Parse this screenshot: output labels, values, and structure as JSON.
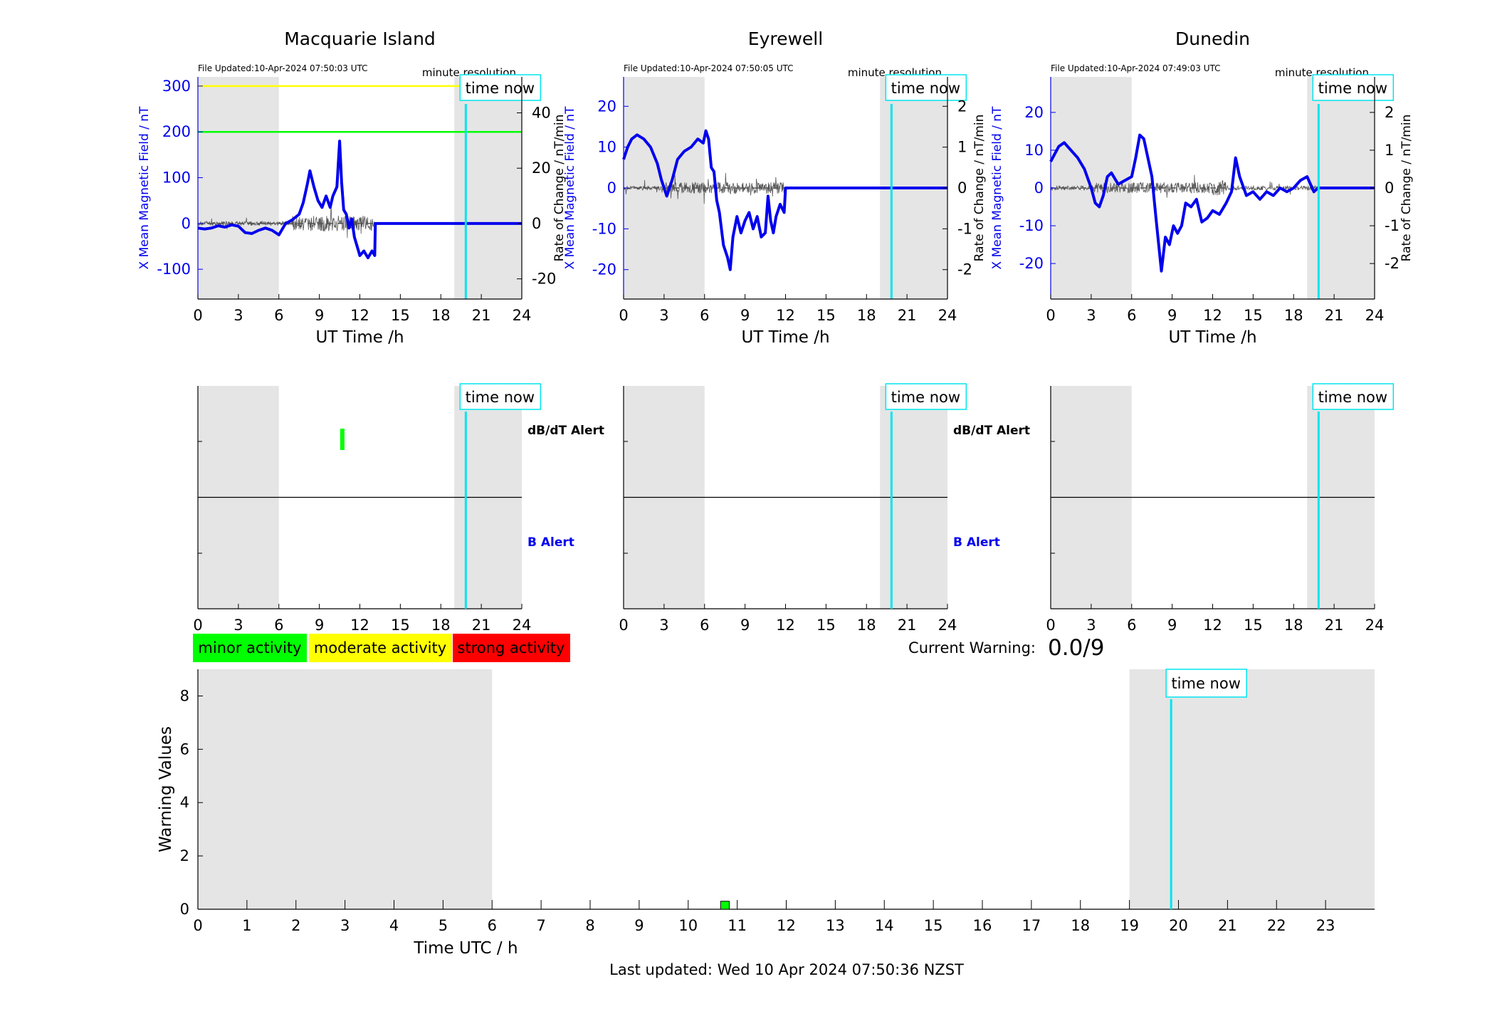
{
  "stations": [
    {
      "name": "Macquarie Island",
      "file_updated": "File Updated:10-Apr-2024 07:50:03 UTC",
      "resolution_label": "minute resolution",
      "left_axis_label": "X Mean Magnetic Field / nT",
      "right_axis_label": "Rate of Change / nT/min",
      "show_right_axis_label": false,
      "xlabel": "UT Time /h",
      "ylim": [
        -165,
        320
      ],
      "yticks": [
        -100,
        0,
        100,
        200,
        300
      ],
      "right_ylim": [
        -27.3,
        53
      ],
      "right_yticks": [
        -20,
        0,
        20,
        40
      ],
      "threshold_lines": [
        {
          "value": 300,
          "color": "#ffff00"
        },
        {
          "value": 200,
          "color": "#00ff00"
        }
      ],
      "dbdt_label": "dB/dT Alert",
      "b_label": "B Alert",
      "show_alert_labels": true
    },
    {
      "name": "Eyrewell",
      "file_updated": "File Updated:10-Apr-2024 07:50:05 UTC",
      "resolution_label": "minute resolution",
      "left_axis_label": "X Mean Magnetic Field / nT",
      "right_axis_label": "Rate of Change / nT/min",
      "show_right_axis_label": true,
      "xlabel": "UT Time /h",
      "ylim": [
        -27.2,
        27.2
      ],
      "yticks": [
        -20,
        -10,
        0,
        10,
        20
      ],
      "right_ylim": [
        -2.72,
        2.72
      ],
      "right_yticks": [
        -2,
        -1,
        0,
        1,
        2
      ],
      "threshold_lines": [],
      "dbdt_label": "dB/dT Alert",
      "b_label": "B Alert",
      "show_alert_labels": true
    },
    {
      "name": "Dunedin",
      "file_updated": "File Updated:10-Apr-2024 07:49:03 UTC",
      "resolution_label": "minute resolution",
      "left_axis_label": "X Mean Magnetic Field / nT",
      "right_axis_label": "Rate of Change / nT/min",
      "show_right_axis_label": true,
      "xlabel": "UT Time /h",
      "ylim": [
        -29.4,
        29.4
      ],
      "yticks": [
        -20,
        -10,
        0,
        10,
        20
      ],
      "right_ylim": [
        -2.94,
        2.94
      ],
      "right_yticks": [
        -2,
        -1,
        0,
        1,
        2
      ],
      "threshold_lines": [],
      "dbdt_label": "",
      "b_label": "",
      "show_alert_labels": false
    }
  ],
  "time_now_label": "time now",
  "time_now_hour": 19.85,
  "time_xticks": [
    0,
    3,
    6,
    9,
    12,
    15,
    18,
    21,
    24
  ],
  "shaded_ranges": [
    [
      0,
      6
    ],
    [
      19,
      24
    ]
  ],
  "colors": {
    "field_line": "#0000ee",
    "rate_line": "#555555",
    "time_now": "#00e5ee",
    "shade": "#e5e5e5",
    "minor": "#00ff00",
    "moderate": "#ffff00",
    "strong": "#ff0000"
  },
  "legend": {
    "minor": "minor activity",
    "moderate": "moderate activity",
    "strong": "strong activity"
  },
  "current_warning_label": "Current Warning:",
  "current_warning_value": "0.0/9",
  "last_updated": "Last updated: Wed 10 Apr 2024 07:50:36 NZST",
  "chart_data": [
    {
      "type": "line",
      "title": "Macquarie Island",
      "xlabel": "UT Time /h",
      "ylabel": "X Mean Magnetic Field / nT",
      "xlim": [
        0,
        24
      ],
      "ylim": [
        -165,
        320
      ],
      "series": [
        {
          "x": [
            0,
            0.5,
            1,
            1.5,
            2,
            2.5,
            3,
            3.5,
            4,
            4.5,
            5,
            5.5,
            6,
            6.5,
            7,
            7.5,
            7.8,
            8.1,
            8.3,
            8.6,
            8.9,
            9.2,
            9.5,
            9.8,
            10,
            10.3,
            10.5,
            10.65,
            10.8,
            11,
            11.2,
            11.4,
            11.6,
            11.8,
            12,
            12.3,
            12.6,
            12.9,
            13.1,
            13.15,
            14,
            16,
            18,
            20,
            22,
            24
          ],
          "y": [
            -10,
            -12,
            -10,
            -5,
            -8,
            -3,
            -6,
            -20,
            -22,
            -15,
            -10,
            -15,
            -25,
            0,
            8,
            20,
            45,
            85,
            115,
            80,
            50,
            35,
            60,
            35,
            60,
            80,
            180,
            90,
            30,
            20,
            -10,
            10,
            -30,
            -50,
            -70,
            -60,
            -75,
            -60,
            -70,
            0,
            0,
            0,
            0,
            0,
            0,
            0
          ]
        }
      ]
    },
    {
      "type": "line",
      "title": "Eyrewell",
      "xlabel": "UT Time /h",
      "ylabel": "X Mean Magnetic Field / nT",
      "xlim": [
        0,
        24
      ],
      "ylim": [
        -27.2,
        27.2
      ],
      "series": [
        {
          "x": [
            0,
            0.3,
            0.6,
            1,
            1.5,
            2,
            2.5,
            2.8,
            3.2,
            3.6,
            4,
            4.5,
            5,
            5.5,
            5.9,
            6.1,
            6.3,
            6.5,
            6.7,
            6.9,
            7.1,
            7.4,
            7.7,
            7.9,
            8.1,
            8.4,
            8.7,
            9,
            9.3,
            9.6,
            9.9,
            10.2,
            10.5,
            10.7,
            10.9,
            11.1,
            11.3,
            11.6,
            11.9,
            12,
            14,
            16,
            18,
            20,
            22,
            24
          ],
          "y": [
            7,
            10,
            12,
            13,
            12,
            10,
            6,
            2,
            -2,
            2,
            7,
            9,
            10,
            12,
            11,
            14,
            12,
            5,
            4,
            -3,
            -6,
            -14,
            -17,
            -20,
            -12,
            -7,
            -11,
            -8,
            -6,
            -10,
            -7,
            -12,
            -11,
            -2,
            -8,
            -11,
            -7,
            -4,
            -6,
            0,
            0,
            0,
            0,
            0,
            0,
            0
          ]
        }
      ]
    },
    {
      "type": "line",
      "title": "Dunedin",
      "xlabel": "UT Time /h",
      "ylabel": "X Mean Magnetic Field / nT",
      "xlim": [
        0,
        24
      ],
      "ylim": [
        -29.4,
        29.4
      ],
      "series": [
        {
          "x": [
            0,
            0.3,
            0.6,
            1,
            1.5,
            2,
            2.5,
            3,
            3.3,
            3.6,
            3.9,
            4.2,
            4.5,
            5,
            5.5,
            6,
            6.3,
            6.6,
            6.9,
            7.2,
            7.5,
            7.8,
            8,
            8.2,
            8.5,
            8.8,
            9.1,
            9.4,
            9.7,
            10,
            10.4,
            10.8,
            11.2,
            11.6,
            12,
            12.5,
            13,
            13.4,
            13.7,
            14,
            14.5,
            15,
            15.5,
            16,
            16.5,
            17,
            17.5,
            18,
            18.5,
            19,
            19.5,
            19.8,
            20,
            24
          ],
          "y": [
            7,
            9,
            11,
            12,
            10,
            8,
            5,
            0,
            -4,
            -5,
            -2,
            3,
            4,
            1,
            2,
            3,
            8,
            14,
            13,
            8,
            3,
            -8,
            -15,
            -22,
            -13,
            -15,
            -10,
            -12,
            -10,
            -4,
            -5,
            -3,
            -9,
            -8,
            -6,
            -7,
            -4,
            -1,
            8,
            3,
            -2,
            -1,
            -3,
            -1,
            -2,
            0,
            -1,
            0,
            2,
            3,
            -1,
            0,
            0,
            0
          ]
        }
      ]
    },
    {
      "type": "bar",
      "title": "",
      "xlabel": "Time UTC / h",
      "ylabel": "Warning Values",
      "xlim": [
        0,
        24
      ],
      "ylim": [
        0,
        9
      ],
      "xticks": [
        0,
        1,
        2,
        3,
        4,
        5,
        6,
        7,
        8,
        9,
        10,
        11,
        12,
        13,
        14,
        15,
        16,
        17,
        18,
        19,
        20,
        21,
        22,
        23
      ],
      "yticks": [
        0,
        2,
        4,
        6,
        8
      ],
      "bars": [
        {
          "x": 10.75,
          "value": 0.3,
          "level": "minor"
        }
      ]
    }
  ],
  "alert_markers": [
    {
      "station": 0,
      "hour": 10.7,
      "type": "dbdt",
      "level": "minor"
    }
  ]
}
